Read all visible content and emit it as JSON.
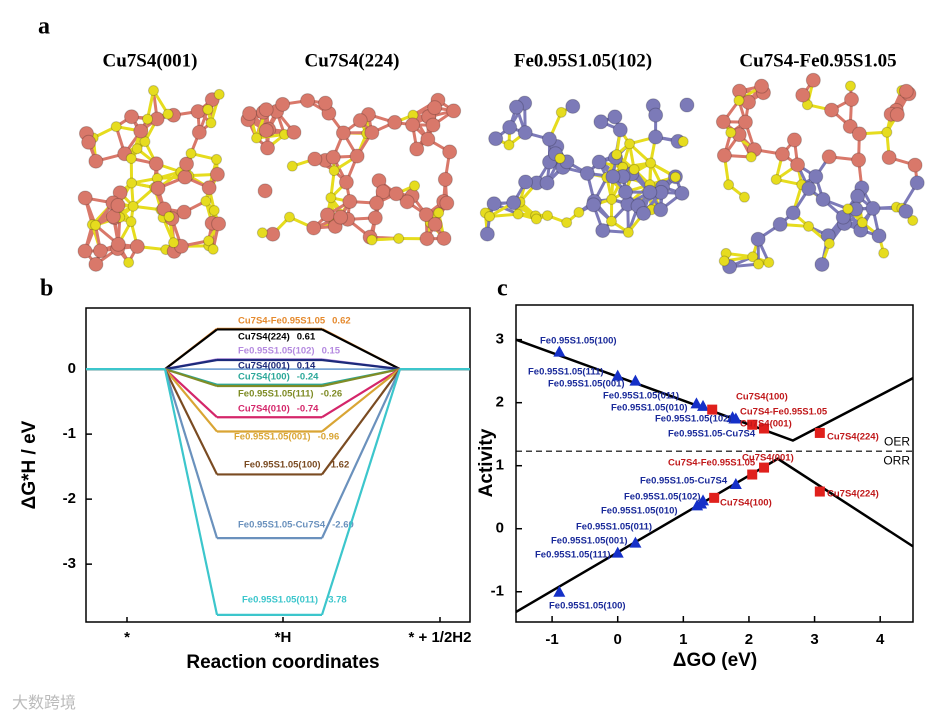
{
  "panel_a": {
    "label": "a",
    "structures": [
      "Cu7S4(001)",
      "Cu7S4(224)",
      "Fe0.95S1.05(102)",
      "Cu7S4-Fe0.95S1.05"
    ]
  },
  "chart_data": [
    {
      "type": "line",
      "label": "b",
      "xlabel": "Reaction coordinates",
      "ylabel": "ΔG*H / eV",
      "categories": [
        "*",
        "*H",
        "* + 1/2H2"
      ],
      "ylim": [
        -3.89,
        0.94
      ],
      "yticks": [
        -3,
        -2,
        -1,
        0
      ],
      "series": [
        {
          "name": "Cu7S4-Fe0.95S1.05",
          "color": "#e58a2e",
          "values": [
            0,
            0.62,
            0
          ]
        },
        {
          "name": "Cu7S4(224)",
          "color": "#000000",
          "values": [
            0,
            0.61,
            0
          ]
        },
        {
          "name": "Fe0.95S1.05(102)",
          "color": "#b58ae0",
          "values": [
            0,
            0.15,
            0
          ]
        },
        {
          "name": "Cu7S4(001)",
          "color": "#1c2a7a",
          "values": [
            0,
            0.14,
            0
          ]
        },
        {
          "name": "Cu7S4(100)",
          "color": "#2ca89a",
          "values": [
            0,
            -0.24,
            0
          ]
        },
        {
          "name": "Fe0.95S1.05(111)",
          "color": "#7f8c26",
          "values": [
            0,
            -0.26,
            0
          ]
        },
        {
          "name": "Cu7S4(010)",
          "color": "#d4266a",
          "values": [
            0,
            -0.74,
            0
          ]
        },
        {
          "name": "Fe0.95S1.05(001)",
          "color": "#d9a534",
          "values": [
            0,
            -0.96,
            0
          ]
        },
        {
          "name": "Fe0.95S1.05(100)",
          "color": "#7a4b22",
          "values": [
            0,
            -1.62,
            0
          ]
        },
        {
          "name": "Fe0.95S1.05-Cu7S4",
          "color": "#6a91bd",
          "values": [
            0,
            -2.6,
            0
          ],
          "value_labels": [
            null,
            "-2.60",
            null
          ]
        },
        {
          "name": "Fe0.95S1.05(011)",
          "color": "#3cc6cc",
          "values": [
            0,
            -3.78,
            0
          ]
        }
      ]
    },
    {
      "type": "scatter",
      "label": "c",
      "xlabel": "ΔGO (eV)",
      "ylabel": "Activity",
      "xlim": [
        -1.55,
        4.5
      ],
      "ylim": [
        -1.48,
        3.55
      ],
      "xticks": [
        -1,
        0,
        1,
        2,
        3,
        4
      ],
      "yticks": [
        -1,
        0,
        1,
        2,
        3
      ],
      "series": [
        {
          "color": "#1530c8",
          "marker": "triangle",
          "x": [
            -0.89,
            0,
            0.27,
            1.2,
            1.3,
            1.75,
            1.8
          ],
          "values": [
            2.81,
            2.43,
            2.35,
            1.99,
            1.95,
            1.77,
            1.75
          ],
          "labels": [
            "Fe0.95S1.05(100)",
            "Fe0.95S1.05(111)",
            "Fe0.95S1.05(001)",
            "Fe0.95S1.05(011)",
            "Fe0.95S1.05(010)",
            "Fe0.95S1.05(102)",
            "Fe0.95S1.05-Cu7S4"
          ]
        },
        {
          "color": "#e0201c",
          "marker": "square",
          "x": [
            1.44,
            2.05,
            2.23,
            3.08
          ],
          "values": [
            1.89,
            1.65,
            1.59,
            1.52
          ],
          "labels": [
            "Cu7S4(100)",
            "Cu7S4-Fe0.95S1.05",
            "Cu7S4(001)",
            "Cu7S4(224)"
          ]
        },
        {
          "color": "#1530c8",
          "marker": "triangle",
          "x": [
            -0.89,
            0,
            0.27,
            1.21,
            1.27,
            1.3,
            1.8
          ],
          "values": [
            -1.0,
            -0.38,
            -0.22,
            0.37,
            0.4,
            0.45,
            0.71
          ],
          "labels": [
            "Fe0.95S1.05(100)",
            "Fe0.95S1.05(111)",
            "Fe0.95S1.05(001)",
            "Fe0.95S1.05(011)",
            "Fe0.95S1.05(010)",
            "Fe0.95S1.05(102)",
            "Fe0.95S1.05-Cu7S4"
          ]
        },
        {
          "color": "#e0201c",
          "marker": "square",
          "x": [
            1.47,
            2.05,
            2.23,
            3.08
          ],
          "values": [
            0.49,
            0.86,
            0.97,
            0.59
          ],
          "labels": [
            "Cu7S4(100)",
            "Cu7S4-Fe0.95S1.05",
            "Cu7S4(001)",
            "Cu7S4(224)"
          ]
        }
      ],
      "lines": [
        {
          "color": "#000000",
          "x": [
            -1.55,
            2.67,
            4.5
          ],
          "values": [
            3.0,
            1.4,
            2.39
          ]
        },
        {
          "color": "#000000",
          "x": [
            -1.55,
            2.44,
            4.5
          ],
          "values": [
            -1.32,
            1.11,
            -0.28
          ]
        }
      ],
      "hline": {
        "value": 1.23,
        "labels": [
          "OER",
          "ORR"
        ]
      }
    }
  ],
  "watermark": "大数跨境"
}
